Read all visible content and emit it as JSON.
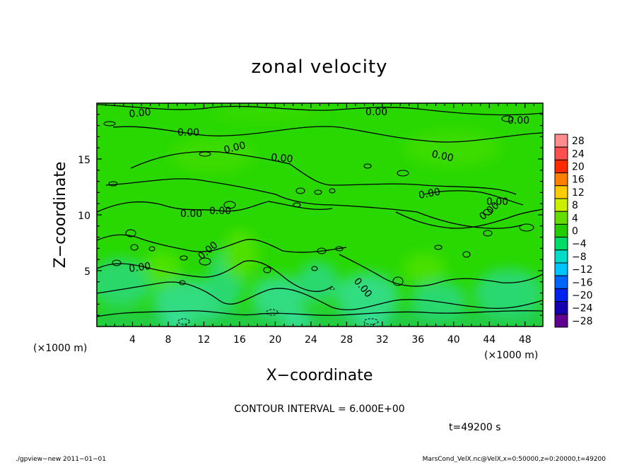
{
  "chart_data": {
    "type": "heatmap",
    "title": "zonal velocity",
    "xlabel": "X−coordinate",
    "ylabel": "Z−coordinate",
    "x_unit": "(×1000 m)",
    "y_unit": "(×1000 m)",
    "xlim": [
      0,
      50
    ],
    "ylim": [
      0,
      20
    ],
    "x_ticks": [
      4,
      8,
      12,
      16,
      20,
      24,
      28,
      32,
      36,
      40,
      44,
      48
    ],
    "y_ticks": [
      5,
      10,
      15
    ],
    "colorbar": {
      "levels": [
        "28",
        "24",
        "20",
        "16",
        "12",
        "8",
        "4",
        "0",
        "−4",
        "−8",
        "−12",
        "−16",
        "−20",
        "−24",
        "−28"
      ],
      "colors": [
        "#ff8c8c",
        "#ff5050",
        "#ff2a00",
        "#ff8000",
        "#ffcc00",
        "#ccee00",
        "#66dd00",
        "#22cc00",
        "#00dd66",
        "#00dcc8",
        "#00c4ff",
        "#0066ff",
        "#0022ee",
        "#1400b0",
        "#600090"
      ]
    },
    "contour_interval": "CONTOUR INTERVAL = 6.000E+00",
    "contour_labels": [
      "0.00",
      "0.00",
      "0.00",
      "0.00",
      "0.00",
      "0.00",
      "0.00",
      "0.00",
      "0.00",
      "0.00",
      "0.00",
      "0.00",
      "0.00",
      "0.00",
      "0.00"
    ],
    "time": "t=49200 s",
    "footer_left": "./gpview−new   2011−01−01",
    "footer_right": "MarsCond_VelX.nc@VelX,x=0:50000,z=0:20000,t=49200"
  }
}
